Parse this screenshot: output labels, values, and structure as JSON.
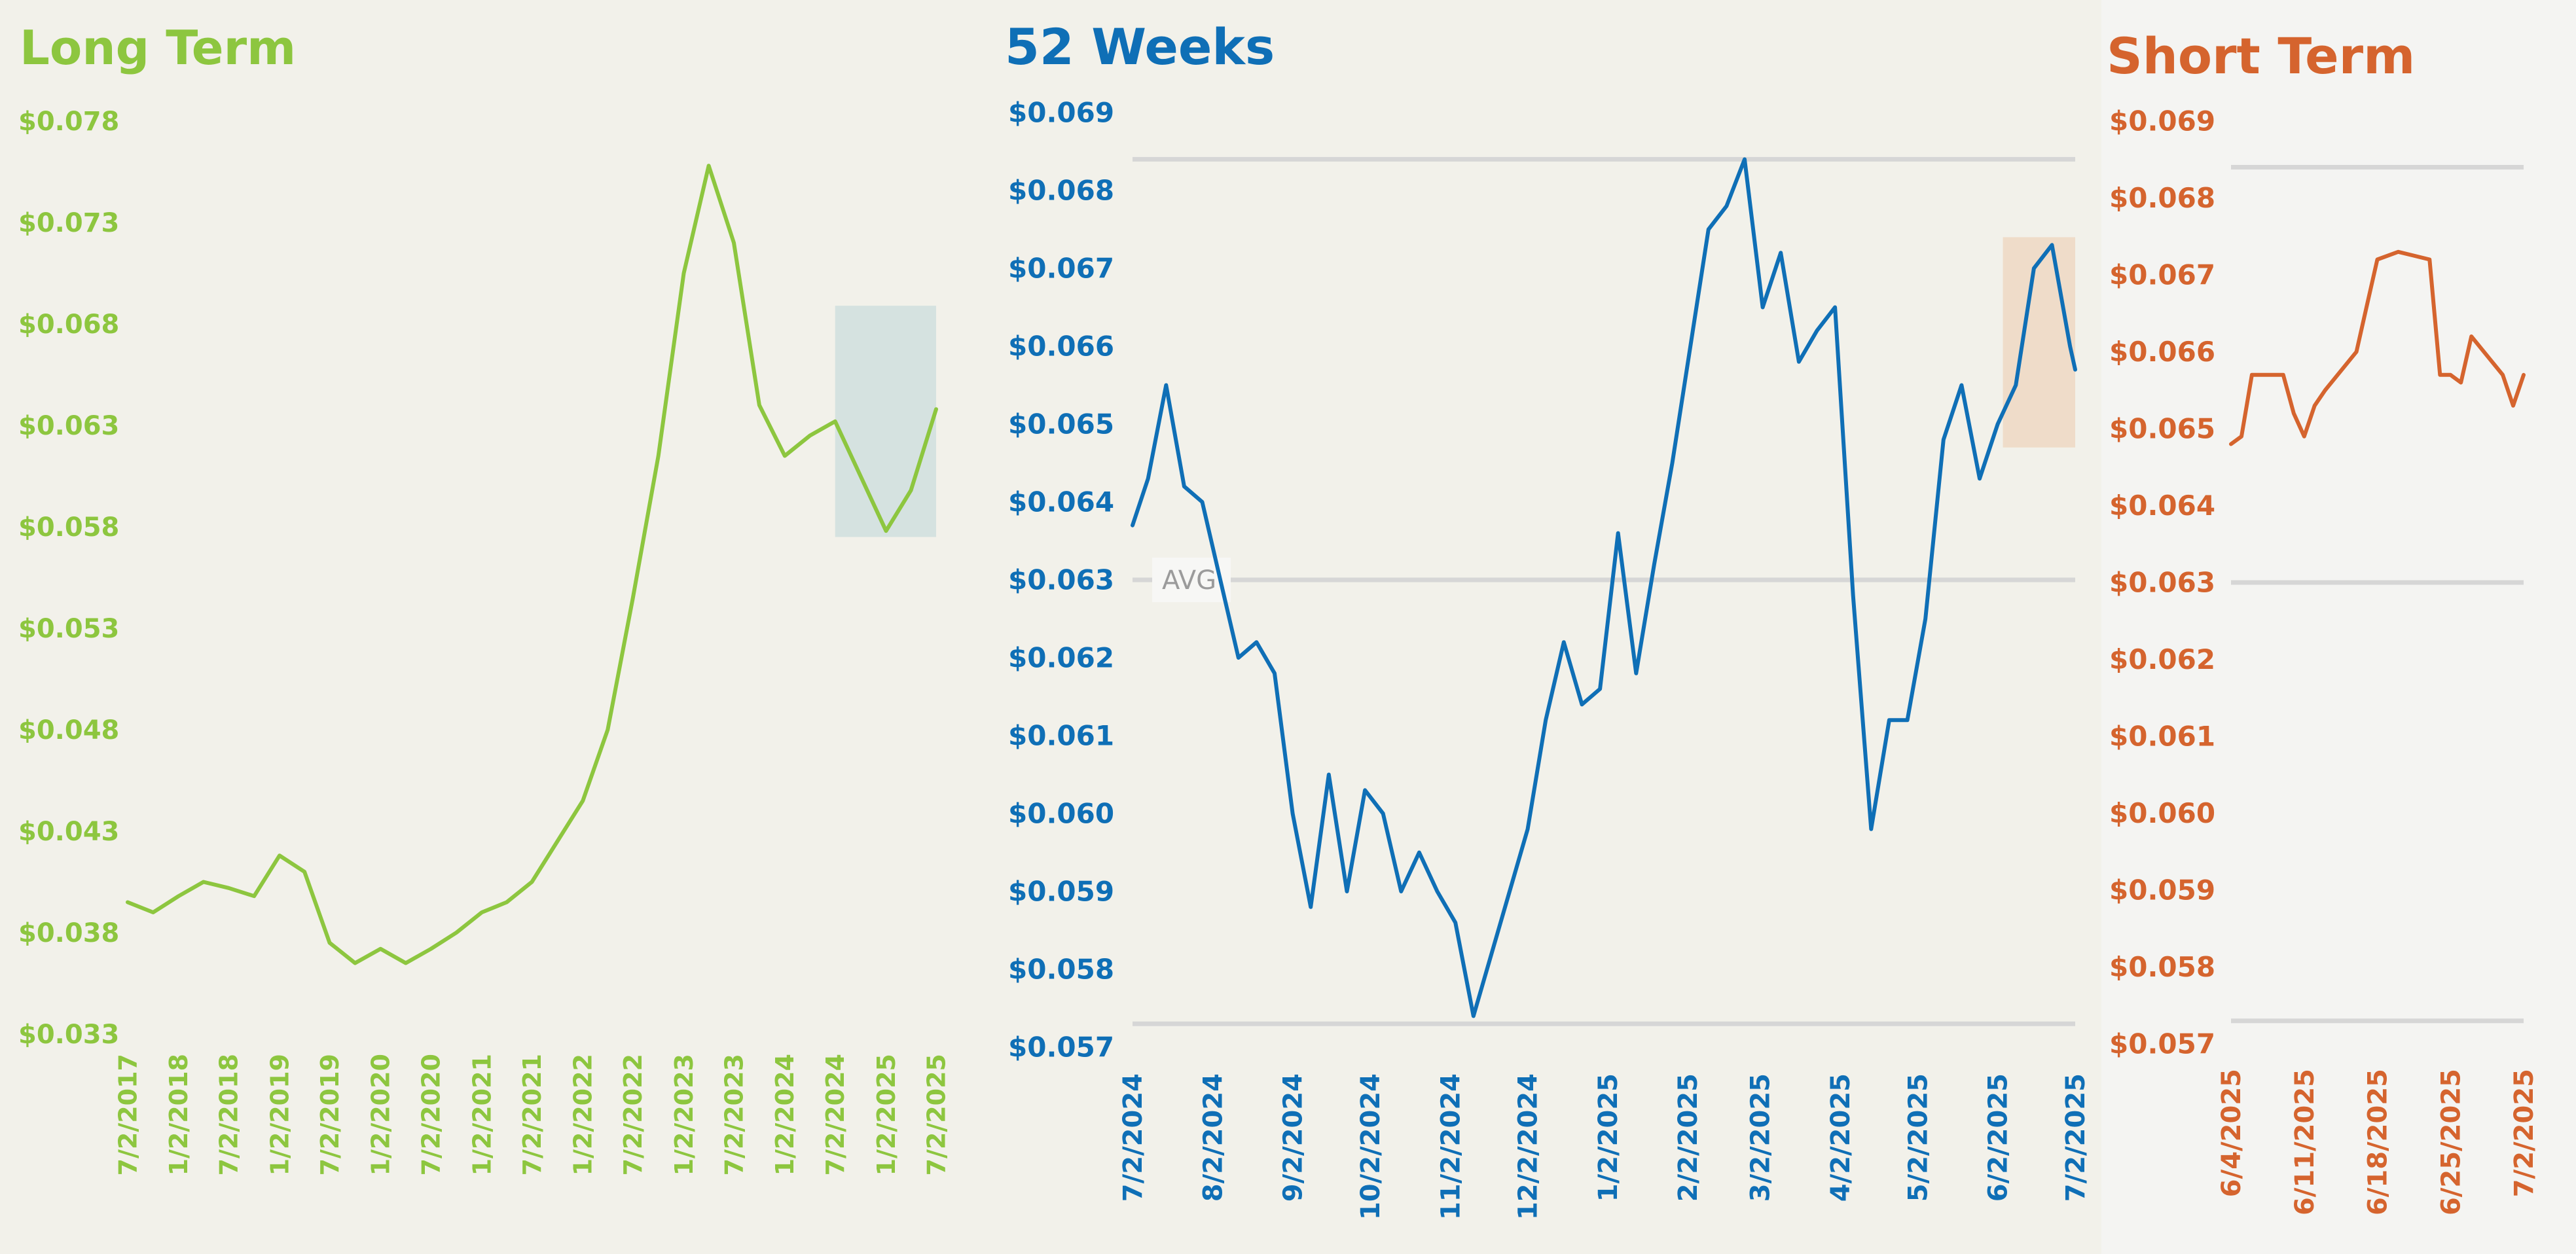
{
  "colors": {
    "background": "#f2f1ea",
    "long_term": "#8dc63f",
    "weeks_52": "#0f6fb6",
    "short_term": "#d5642e",
    "gridline": "#d6d6d6",
    "highlight_long": "#d5e2e0",
    "highlight_52": "#efdcc9"
  },
  "chart_data": [
    {
      "type": "line",
      "title": "Long Term",
      "xlabel": "",
      "ylabel": "",
      "ylim": [
        0.033,
        0.078
      ],
      "y_ticks": [
        "$0.078",
        "$0.073",
        "$0.068",
        "$0.063",
        "$0.058",
        "$0.053",
        "$0.048",
        "$0.043",
        "$0.038",
        "$0.033"
      ],
      "x_tick_labels": [
        "7/2/2017",
        "1/2/2018",
        "7/2/2018",
        "1/2/2019",
        "7/2/2019",
        "1/2/2020",
        "7/2/2020",
        "1/2/2021",
        "7/2/2021",
        "1/2/2022",
        "7/2/2022",
        "1/2/2023",
        "7/2/2023",
        "1/2/2024",
        "7/2/2024",
        "1/2/2025",
        "7/2/2025"
      ],
      "highlight": {
        "x_start": "7/2/2024",
        "x_end": "7/2/2025",
        "y_range": [
          0.0575,
          0.0689
        ]
      },
      "grid": false,
      "series": [
        {
          "x": [
            "7/2/2017",
            "10/2/2017",
            "1/2/2018",
            "4/2/2018",
            "7/2/2018",
            "10/2/2018",
            "1/2/2019",
            "4/2/2019",
            "7/2/2019",
            "10/2/2019",
            "1/2/2020",
            "4/2/2020",
            "7/2/2020",
            "10/2/2020",
            "1/2/2021",
            "4/2/2021",
            "7/2/2021",
            "10/2/2021",
            "1/2/2022",
            "4/2/2022",
            "7/2/2022",
            "10/2/2022",
            "1/2/2023",
            "4/2/2023",
            "7/2/2023",
            "10/2/2023",
            "1/2/2024",
            "4/2/2024",
            "7/2/2024",
            "10/2/2024",
            "1/2/2025",
            "4/2/2025",
            "7/2/2025"
          ],
          "values": [
            0.0395,
            0.039,
            0.0398,
            0.0405,
            0.0402,
            0.0398,
            0.0418,
            0.041,
            0.0375,
            0.0365,
            0.0372,
            0.0365,
            0.0372,
            0.038,
            0.039,
            0.0395,
            0.0405,
            0.0425,
            0.0445,
            0.048,
            0.0545,
            0.0615,
            0.0705,
            0.0758,
            0.072,
            0.064,
            0.0615,
            0.0625,
            0.0632,
            0.0605,
            0.0578,
            0.0598,
            0.0638
          ]
        }
      ]
    },
    {
      "type": "line",
      "title": "52 Weeks",
      "xlabel": "",
      "ylabel": "",
      "ylim": [
        0.057,
        0.069
      ],
      "y_ticks": [
        "$0.069",
        "$0.068",
        "$0.067",
        "$0.066",
        "$0.065",
        "$0.064",
        "$0.063",
        "$0.062",
        "$0.061",
        "$0.060",
        "$0.059",
        "$0.058",
        "$0.057"
      ],
      "x_tick_labels": [
        "7/2/2024",
        "8/2/2024",
        "9/2/2024",
        "10/2/2024",
        "11/2/2024",
        "12/2/2024",
        "1/2/2025",
        "2/2/2025",
        "3/2/2025",
        "4/2/2025",
        "5/2/2025",
        "6/2/2025",
        "7/2/2025"
      ],
      "reference_lines": [
        {
          "value": 0.0684
        },
        {
          "value": 0.063,
          "label": "AVG"
        },
        {
          "value": 0.0573
        }
      ],
      "highlight": {
        "x_start": "6/4/2025",
        "x_end": "7/2/2025",
        "y_range": [
          0.0647,
          0.0674
        ]
      },
      "series": [
        {
          "x": [
            "7/2/2024",
            "7/8/2024",
            "7/15/2024",
            "7/22/2024",
            "7/29/2024",
            "8/5/2024",
            "8/12/2024",
            "8/19/2024",
            "8/26/2024",
            "9/2/2024",
            "9/9/2024",
            "9/16/2024",
            "9/23/2024",
            "9/30/2024",
            "10/7/2024",
            "10/14/2024",
            "10/21/2024",
            "10/28/2024",
            "11/4/2024",
            "11/11/2024",
            "11/18/2024",
            "11/25/2024",
            "12/2/2024",
            "12/9/2024",
            "12/16/2024",
            "12/23/2024",
            "12/30/2024",
            "1/6/2025",
            "1/13/2025",
            "1/20/2025",
            "1/27/2025",
            "2/3/2025",
            "2/10/2025",
            "2/17/2025",
            "2/24/2025",
            "3/3/2025",
            "3/10/2025",
            "3/17/2025",
            "3/24/2025",
            "3/31/2025",
            "4/7/2025",
            "4/14/2025",
            "4/21/2025",
            "4/28/2025",
            "5/5/2025",
            "5/12/2025",
            "5/19/2025",
            "5/26/2025",
            "6/2/2025",
            "6/9/2025",
            "6/16/2025",
            "6/23/2025",
            "6/30/2025",
            "7/2/2025"
          ],
          "values": [
            0.0637,
            0.0643,
            0.0655,
            0.0642,
            0.064,
            0.063,
            0.062,
            0.0622,
            0.0618,
            0.06,
            0.0588,
            0.0605,
            0.059,
            0.0603,
            0.06,
            0.059,
            0.0595,
            0.059,
            0.0586,
            0.0574,
            0.0582,
            0.059,
            0.0598,
            0.0612,
            0.0622,
            0.0614,
            0.0616,
            0.0636,
            0.0618,
            0.0632,
            0.0645,
            0.066,
            0.0675,
            0.0678,
            0.0684,
            0.0665,
            0.0672,
            0.0658,
            0.0662,
            0.0665,
            0.0628,
            0.0598,
            0.0612,
            0.0612,
            0.0625,
            0.0648,
            0.0655,
            0.0643,
            0.065,
            0.0655,
            0.067,
            0.0673,
            0.066,
            0.0657
          ]
        }
      ]
    },
    {
      "type": "line",
      "title": "Short Term",
      "xlabel": "",
      "ylabel": "",
      "ylim": [
        0.057,
        0.069
      ],
      "y_ticks": [
        "$0.069",
        "$0.068",
        "$0.067",
        "$0.066",
        "$0.065",
        "$0.064",
        "$0.063",
        "$0.062",
        "$0.061",
        "$0.060",
        "$0.059",
        "$0.058",
        "$0.057"
      ],
      "x_tick_labels": [
        "6/4/2025",
        "6/11/2025",
        "6/18/2025",
        "6/25/2025",
        "7/2/2025"
      ],
      "reference_lines": [
        {
          "value": 0.0684
        },
        {
          "value": 0.063
        },
        {
          "value": 0.0573
        }
      ],
      "series": [
        {
          "x": [
            "6/4/2025",
            "6/5/2025",
            "6/6/2025",
            "6/9/2025",
            "6/10/2025",
            "6/11/2025",
            "6/12/2025",
            "6/13/2025",
            "6/16/2025",
            "6/17/2025",
            "6/18/2025",
            "6/20/2025",
            "6/23/2025",
            "6/24/2025",
            "6/25/2025",
            "6/26/2025",
            "6/27/2025",
            "6/30/2025",
            "7/1/2025",
            "7/2/2025"
          ],
          "values": [
            0.0648,
            0.0649,
            0.0657,
            0.0657,
            0.0652,
            0.0649,
            0.0653,
            0.0655,
            0.066,
            0.0666,
            0.0672,
            0.0673,
            0.0672,
            0.0657,
            0.0657,
            0.0656,
            0.0662,
            0.0657,
            0.0653,
            0.0657
          ]
        }
      ]
    }
  ]
}
